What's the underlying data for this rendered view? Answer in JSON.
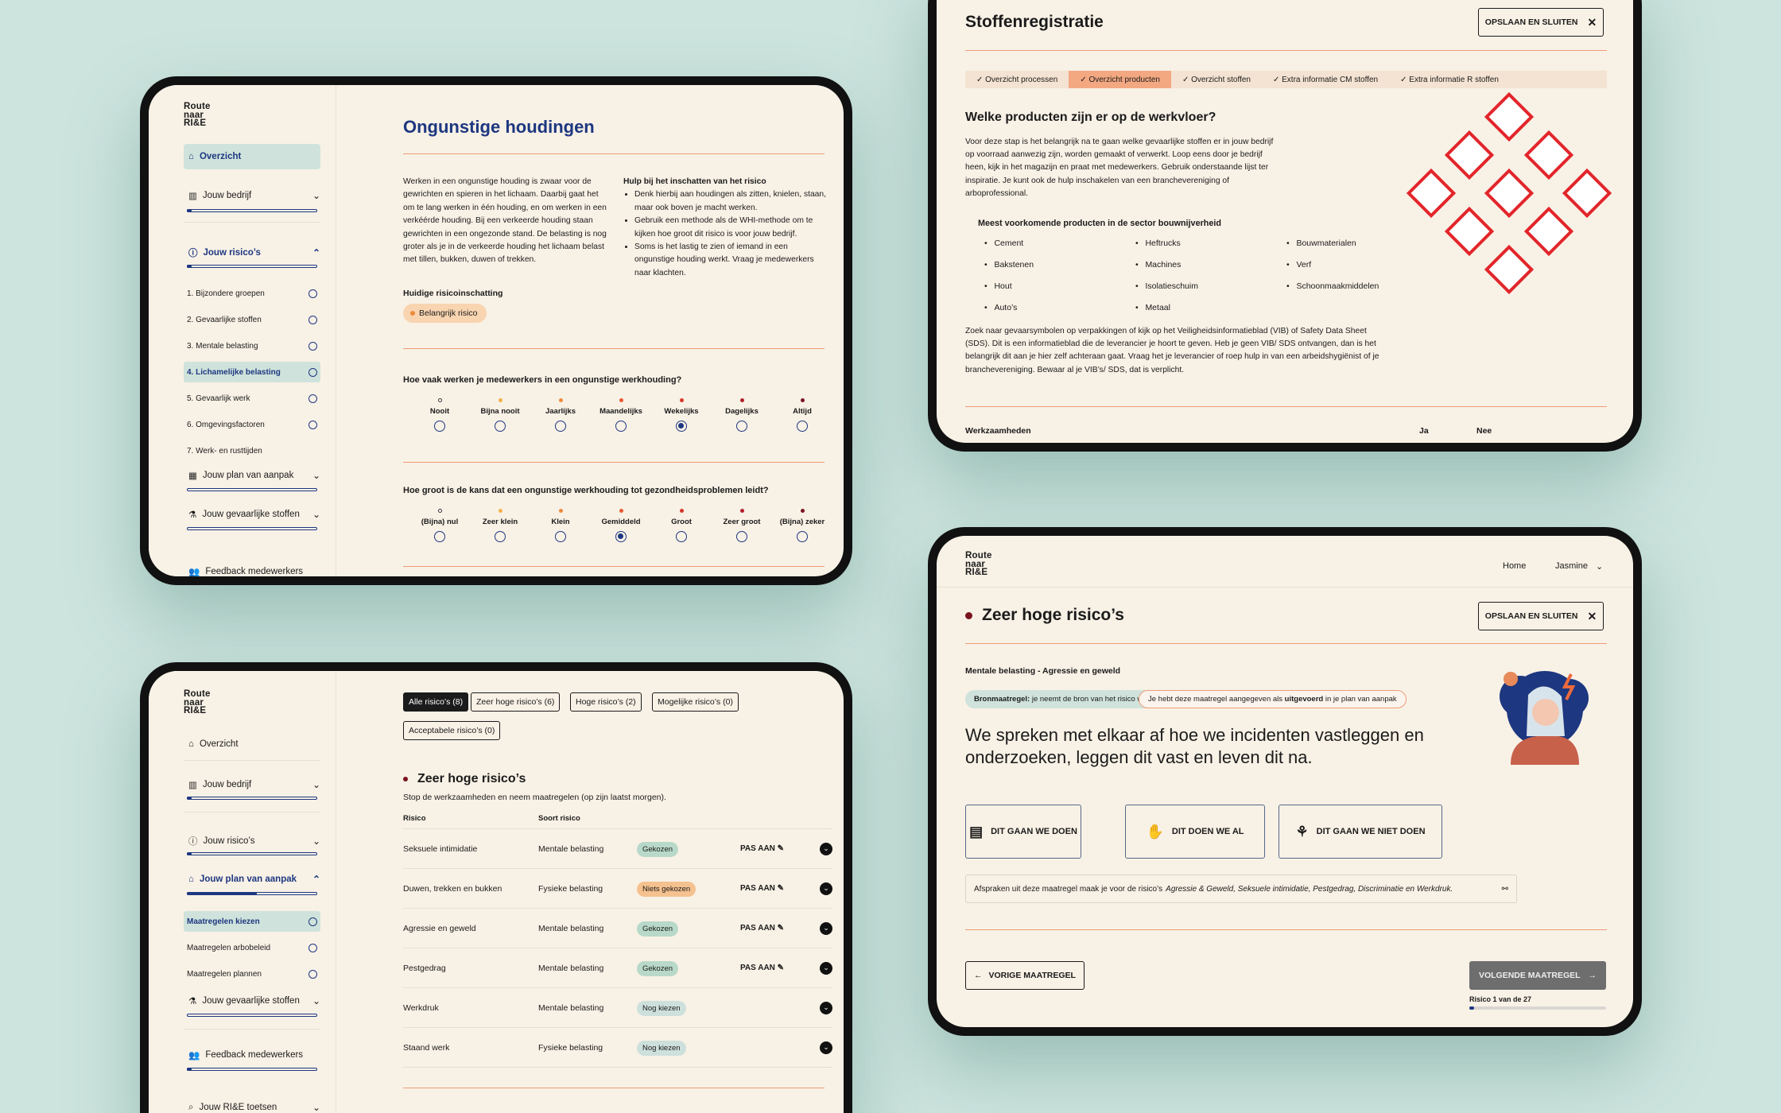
{
  "risk_form": {
    "logo": [
      "Route",
      "naar",
      "RI&E"
    ],
    "nav": {
      "overview": "Overzicht",
      "company": "Jouw bedrijf",
      "risks": "Jouw risico’s",
      "plan": "Jouw plan van aanpak",
      "hazardous": "Jouw gevaarlijke stoffen",
      "feedback": "Feedback medewerkers"
    },
    "subitems": [
      "1. Bijzondere groepen",
      "2. Gevaarlijke stoffen",
      "3. Mentale belasting",
      "4. Lichamelijke belasting",
      "5. Gevaarlijk werk",
      "6. Omgevingsfactoren",
      "7. Werk- en rusttijden"
    ],
    "title": "Ongunstige houdingen",
    "intro": "Werken in een ongunstige houding is zwaar voor de gewrichten en spieren in het lichaam. Daarbij gaat het om te lang werken in één houding, en om werken in een verkéérde houding. Bij een verkeerde houding staan gewrichten in een ongezonde stand. De belasting is nog groter als je in de verkeerde houding het lichaam belast met tillen, bukken, duwen of trekken.",
    "help_title": "Hulp bij het inschatten van het risico",
    "help_items": [
      "Denk hierbij aan houdingen als zitten, knielen, staan, maar ook boven je macht werken.",
      "Gebruik een methode als de WHI-methode om te kijken hoe groot dit risico is voor jouw bedrijf.",
      "Soms is het lastig te zien of iemand in een ongunstige houding werkt. Vraag je medewerkers naar klachten."
    ],
    "current_label": "Huidige risicoinschatting",
    "current_value": "Belangrijk risico",
    "q1": "Hoe vaak werken je medewerkers in een ongunstige werkhouding?",
    "q1_options": [
      "Nooit",
      "Bijna nooit",
      "Jaarlijks",
      "Maandelijks",
      "Wekelijks",
      "Dagelijks",
      "Altijd"
    ],
    "q1_selected": 4,
    "q2": "Hoe groot is de kans dat een ongunstige werkhouding tot gezondheidsproblemen leidt?",
    "q2_options": [
      "(Bijna) nul",
      "Zeer klein",
      "Klein",
      "Gemiddeld",
      "Groot",
      "Zeer groot",
      "(Bijna) zeker"
    ],
    "q2_selected": 3,
    "scale_colors": [
      "#ffffff",
      "#f4b24a",
      "#ee8a3c",
      "#e8582e",
      "#d9352a",
      "#b51f2a",
      "#7a1420"
    ]
  },
  "substances": {
    "title": "Stoffenregistratie",
    "save": "OPSLAAN EN SLUITEN",
    "steps": [
      "Overzicht processen",
      "Overzicht producten",
      "Overzicht stoffen",
      "Extra informatie CM stoffen",
      "Extra informatie R stoffen"
    ],
    "active_step": 1,
    "question": "Welke producten zijn er op de werkvloer?",
    "intro": "Voor deze stap is het belangrijk na te gaan welke gevaarlijke stoffen er in jouw bedrijf op voorraad aanwezig zijn, worden gemaakt of verwerkt. Loop eens door je bedrijf heen, kijk in het magazijn en praat met medewerkers. Gebruik onderstaande lijst ter inspiratie. Je kunt ook de hulp inschakelen van een branchevereniging of arboprofessional.",
    "products_title": "Meest voorkomende producten in de sector bouwnijverheid",
    "products": [
      [
        "Cement",
        "Bakstenen",
        "Hout",
        "Auto’s"
      ],
      [
        "Heftrucks",
        "Machines",
        "Isolatieschuim",
        "Metaal"
      ],
      [
        "Bouwmaterialen",
        "Verf",
        "Schoonmaakmiddelen"
      ]
    ],
    "note": "Zoek naar gevaarsymbolen op verpakkingen of kijk op het Veiligheidsinformatieblad (VIB) of Safety Data Sheet (SDS). Dit is een informatieblad die de leverancier je hoort te geven. Heb je geen VIB/ SDS ontvangen, dan is het belangrijk dit aan je hier zelf achteraan gaat. Vraag het je leverancier of roep hulp in van een arbeidshygiënist of je branchevereniging. Bewaar al je VIB’s/ SDS, dat is verplicht.",
    "table_headers": [
      "Werkzaamheden",
      "Ja",
      "Nee"
    ]
  },
  "risk_list": {
    "logo": [
      "Route",
      "naar",
      "RI&E"
    ],
    "nav": {
      "overview": "Overzicht",
      "company": "Jouw bedrijf",
      "risks": "Jouw risico’s",
      "plan": "Jouw plan van aanpak",
      "hazardous": "Jouw gevaarlijke stoffen",
      "feedback": "Feedback medewerkers",
      "test": "Jouw RI&E toetsen"
    },
    "subitems": [
      "Maatregelen kiezen",
      "Maatregelen arbobeleid",
      "Maatregelen plannen"
    ],
    "filters": [
      "Alle risico’s (8)",
      "Zeer hoge risico’s (6)",
      "Hoge risico’s (2)",
      "Mogelijke risico’s (0)",
      "Acceptabele risico’s (0)"
    ],
    "section_title": "Zeer hoge risico’s",
    "section_sub": "Stop de werkzaamheden en neem maatregelen (op zijn laatst morgen).",
    "col_risk": "Risico",
    "col_type": "Soort risico",
    "edit": "PAS AAN",
    "rows": [
      {
        "risk": "Seksuele intimidatie",
        "type": "Mentale belasting",
        "status": "Gekozen",
        "edit": true
      },
      {
        "risk": "Duwen, trekken en bukken",
        "type": "Fysieke belasting",
        "status": "Niets gekozen",
        "edit": true
      },
      {
        "risk": "Agressie en geweld",
        "type": "Mentale belasting",
        "status": "Gekozen",
        "edit": true
      },
      {
        "risk": "Pestgedrag",
        "type": "Mentale belasting",
        "status": "Gekozen",
        "edit": true
      },
      {
        "risk": "Werkdruk",
        "type": "Mentale belasting",
        "status": "Nog kiezen",
        "edit": false
      },
      {
        "risk": "Staand werk",
        "type": "Fysieke belasting",
        "status": "Nog kiezen",
        "edit": false
      }
    ]
  },
  "measure": {
    "logo": [
      "Route",
      "naar",
      "RI&E"
    ],
    "home": "Home",
    "user": "Jasmine",
    "title": "Zeer hoge risico’s",
    "save": "OPSLAAN EN SLUITEN",
    "category": "Mentale belasting - Agressie en geweld",
    "tag1_bold": "Bronmaatregel:",
    "tag1": "je neemt de bron van het risico weg.",
    "tag2a": "Je hebt deze maatregel aangegeven als",
    "tag2b": "uitgevoerd",
    "tag2c": "in je plan van aanpak",
    "statement": "We spreken met elkaar af hoe we incidenten vastleggen en onderzoeken, leggen dit vast en leven dit na.",
    "choices": [
      "DIT GAAN WE DOEN",
      "DIT DOEN WE AL",
      "DIT GAAN WE NIET DOEN"
    ],
    "agreement_a": "Afspraken uit deze maatregel maak je voor de risico’s",
    "agreement_b": "Agressie & Geweld, Seksuele intimidatie, Pestgedrag, Discriminatie en Werkdruk.",
    "prev": "VORIGE MAATREGEL",
    "next": "VOLGENDE MAATREGEL",
    "progress_text": "Risico 1 van de 27",
    "progress": 0.037
  }
}
